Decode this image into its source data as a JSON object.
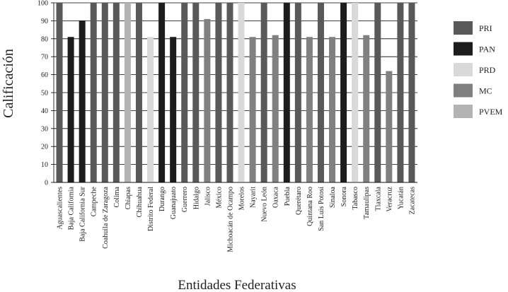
{
  "chart_data": {
    "type": "bar",
    "xlabel": "Entidades Federativas",
    "ylabel": "Calificación",
    "ylim": [
      0,
      100
    ],
    "yticks": [
      0,
      10,
      20,
      30,
      40,
      50,
      60,
      70,
      80,
      90,
      100
    ],
    "grid": true,
    "legend_position": "right",
    "categories": [
      "Aguascalientes",
      "Baja California",
      "Baja California Sur",
      "Campeche",
      "Coahuila de Zaragoza",
      "Colima",
      "Chiapas",
      "Chihuahua",
      "Distrito Federal",
      "Durango",
      "Guanajuato",
      "Guerrero",
      "Hidalgo",
      "Jalisco",
      "México",
      "Michoacán de Ocampo",
      "Morelos",
      "Nayarit",
      "Nuevo León",
      "Oaxaca",
      "Puebla",
      "Querétaro",
      "Quintana Roo",
      "San Luis Potosí",
      "Sinaloa",
      "Sonora",
      "Tabasco",
      "Tamaulipas",
      "Tlaxcala",
      "Veracruz",
      "Yucatán",
      "Zacatecas"
    ],
    "values": [
      100,
      81,
      90,
      100,
      100,
      100,
      100,
      100,
      81,
      100,
      81,
      100,
      100,
      91,
      100,
      100,
      100,
      81,
      100,
      82,
      100,
      100,
      81,
      100,
      81,
      100,
      100,
      82,
      100,
      62,
      100,
      100
    ],
    "bar_party": [
      "PRI",
      "PAN",
      "PAN",
      "PRI",
      "PRI",
      "PRI",
      "PVEM",
      "PRI",
      "PRD",
      "PAN",
      "PAN",
      "PRI",
      "PRI",
      "MC",
      "PRI",
      "PRI",
      "PRD",
      "MC",
      "PRI",
      "MC",
      "PAN",
      "PRI",
      "MC",
      "PRI",
      "MC",
      "PAN",
      "PRD",
      "MC",
      "PRI",
      "MC",
      "PRI",
      "PRI"
    ],
    "legend": [
      {
        "name": "PRI",
        "color": "#595959"
      },
      {
        "name": "PAN",
        "color": "#1c1c1c"
      },
      {
        "name": "PRD",
        "color": "#d9d9d9"
      },
      {
        "name": "MC",
        "color": "#808080"
      },
      {
        "name": "PVEM",
        "color": "#b3b3b3"
      }
    ]
  }
}
